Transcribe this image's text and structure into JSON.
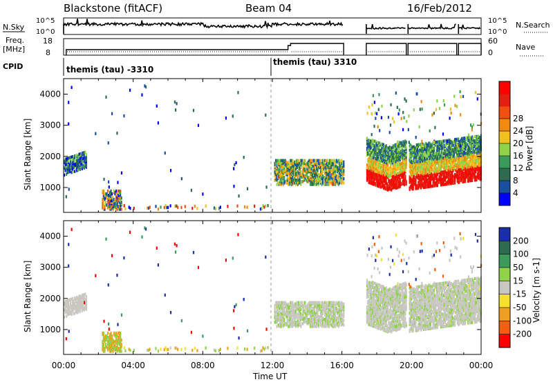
{
  "header": {
    "station": "Blackstone (fitACF)",
    "beam": "Beam 04",
    "date": "16/Feb/2012"
  },
  "panels": {
    "nsky_label": "N.Sky",
    "nsky_ticks": [
      "10^5",
      "10^0"
    ],
    "nsearch_label": "N.Search",
    "nsearch_ticks": [
      "10^5",
      "10^0"
    ],
    "freq_label_1": "Freq.",
    "freq_label_2": "[MHz]",
    "freq_ticks": [
      "18",
      "8"
    ],
    "nave_label": "Nave",
    "nave_ticks": [
      "60",
      "0"
    ],
    "cpid_label": "CPID",
    "cpid_segments": [
      "themis (tau) -3310",
      "themis (tau) 3310"
    ]
  },
  "colors": {
    "power": [
      "#0000ff",
      "#1a4fa0",
      "#2e6b50",
      "#3c9a5a",
      "#8fd34a",
      "#f0c020",
      "#f08a10",
      "#f05010",
      "#e02010",
      "#ff0000"
    ],
    "velocity": [
      "#1a2ea8",
      "#2e6b50",
      "#3c9a5a",
      "#8fd34a",
      "#c8c8c0",
      "#f5e030",
      "#f0a020",
      "#f06010",
      "#ff0000"
    ]
  },
  "chart_data": [
    {
      "type": "heatmap",
      "name": "power",
      "ylabel": "Slant Range [km]",
      "yticks": [
        1000,
        2000,
        3000,
        4000
      ],
      "ylim": [
        200,
        4500
      ],
      "colorbar_label": "Power [dB]",
      "colorbar_ticks": [
        "4",
        "8",
        "12",
        "16",
        "20",
        "24",
        "28"
      ],
      "colorbar_range": [
        0,
        30
      ]
    },
    {
      "type": "heatmap",
      "name": "velocity",
      "ylabel": "Slant Range [km]",
      "yticks": [
        1000,
        2000,
        3000,
        4000
      ],
      "ylim": [
        200,
        4500
      ],
      "colorbar_label": "Velocity [m s-1]",
      "colorbar_ticks": [
        "200",
        "100",
        "50",
        "15",
        "-15",
        "-50",
        "-100",
        "-200"
      ]
    }
  ],
  "xaxis": {
    "label": "Time UT",
    "ticks": [
      "00:00",
      "04:00",
      "08:00",
      "12:00",
      "16:00",
      "20:00",
      "00:00"
    ]
  }
}
